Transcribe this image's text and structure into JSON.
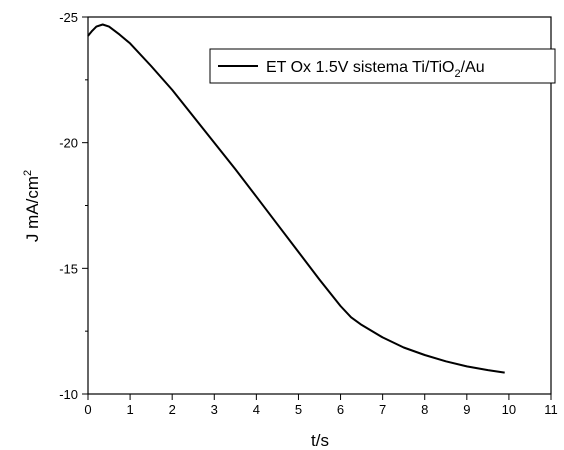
{
  "chart_data": {
    "type": "line",
    "title": "",
    "xlabel": "t/s",
    "ylabel_main": "J mA/cm",
    "ylabel_sup": "2",
    "xlim": [
      0,
      11
    ],
    "ylim": [
      -10,
      -25
    ],
    "y_axis_inverted": true,
    "grid": false,
    "legend_position": "top-right",
    "x_ticks": [
      0,
      1,
      2,
      3,
      4,
      5,
      6,
      7,
      8,
      9,
      10,
      11
    ],
    "y_ticks": [
      -10,
      -15,
      -20,
      -25
    ],
    "series": [
      {
        "name_parts": [
          "ET Ox 1.5V sistema Ti/TiO",
          "2",
          "/Au"
        ],
        "color": "#000000",
        "x": [
          0,
          0.1,
          0.2,
          0.35,
          0.5,
          0.75,
          1.0,
          1.5,
          2.0,
          2.5,
          3.0,
          3.5,
          4.0,
          4.5,
          5.0,
          5.5,
          6.0,
          6.25,
          6.5,
          7.0,
          7.5,
          8.0,
          8.5,
          9.0,
          9.5,
          9.9
        ],
        "y": [
          -24.25,
          -24.45,
          -24.62,
          -24.7,
          -24.62,
          -24.3,
          -23.95,
          -23.05,
          -22.1,
          -21.05,
          -20.0,
          -18.95,
          -17.85,
          -16.75,
          -15.65,
          -14.55,
          -13.5,
          -13.05,
          -12.75,
          -12.25,
          -11.85,
          -11.55,
          -11.3,
          -11.1,
          -10.95,
          -10.85
        ]
      }
    ]
  }
}
